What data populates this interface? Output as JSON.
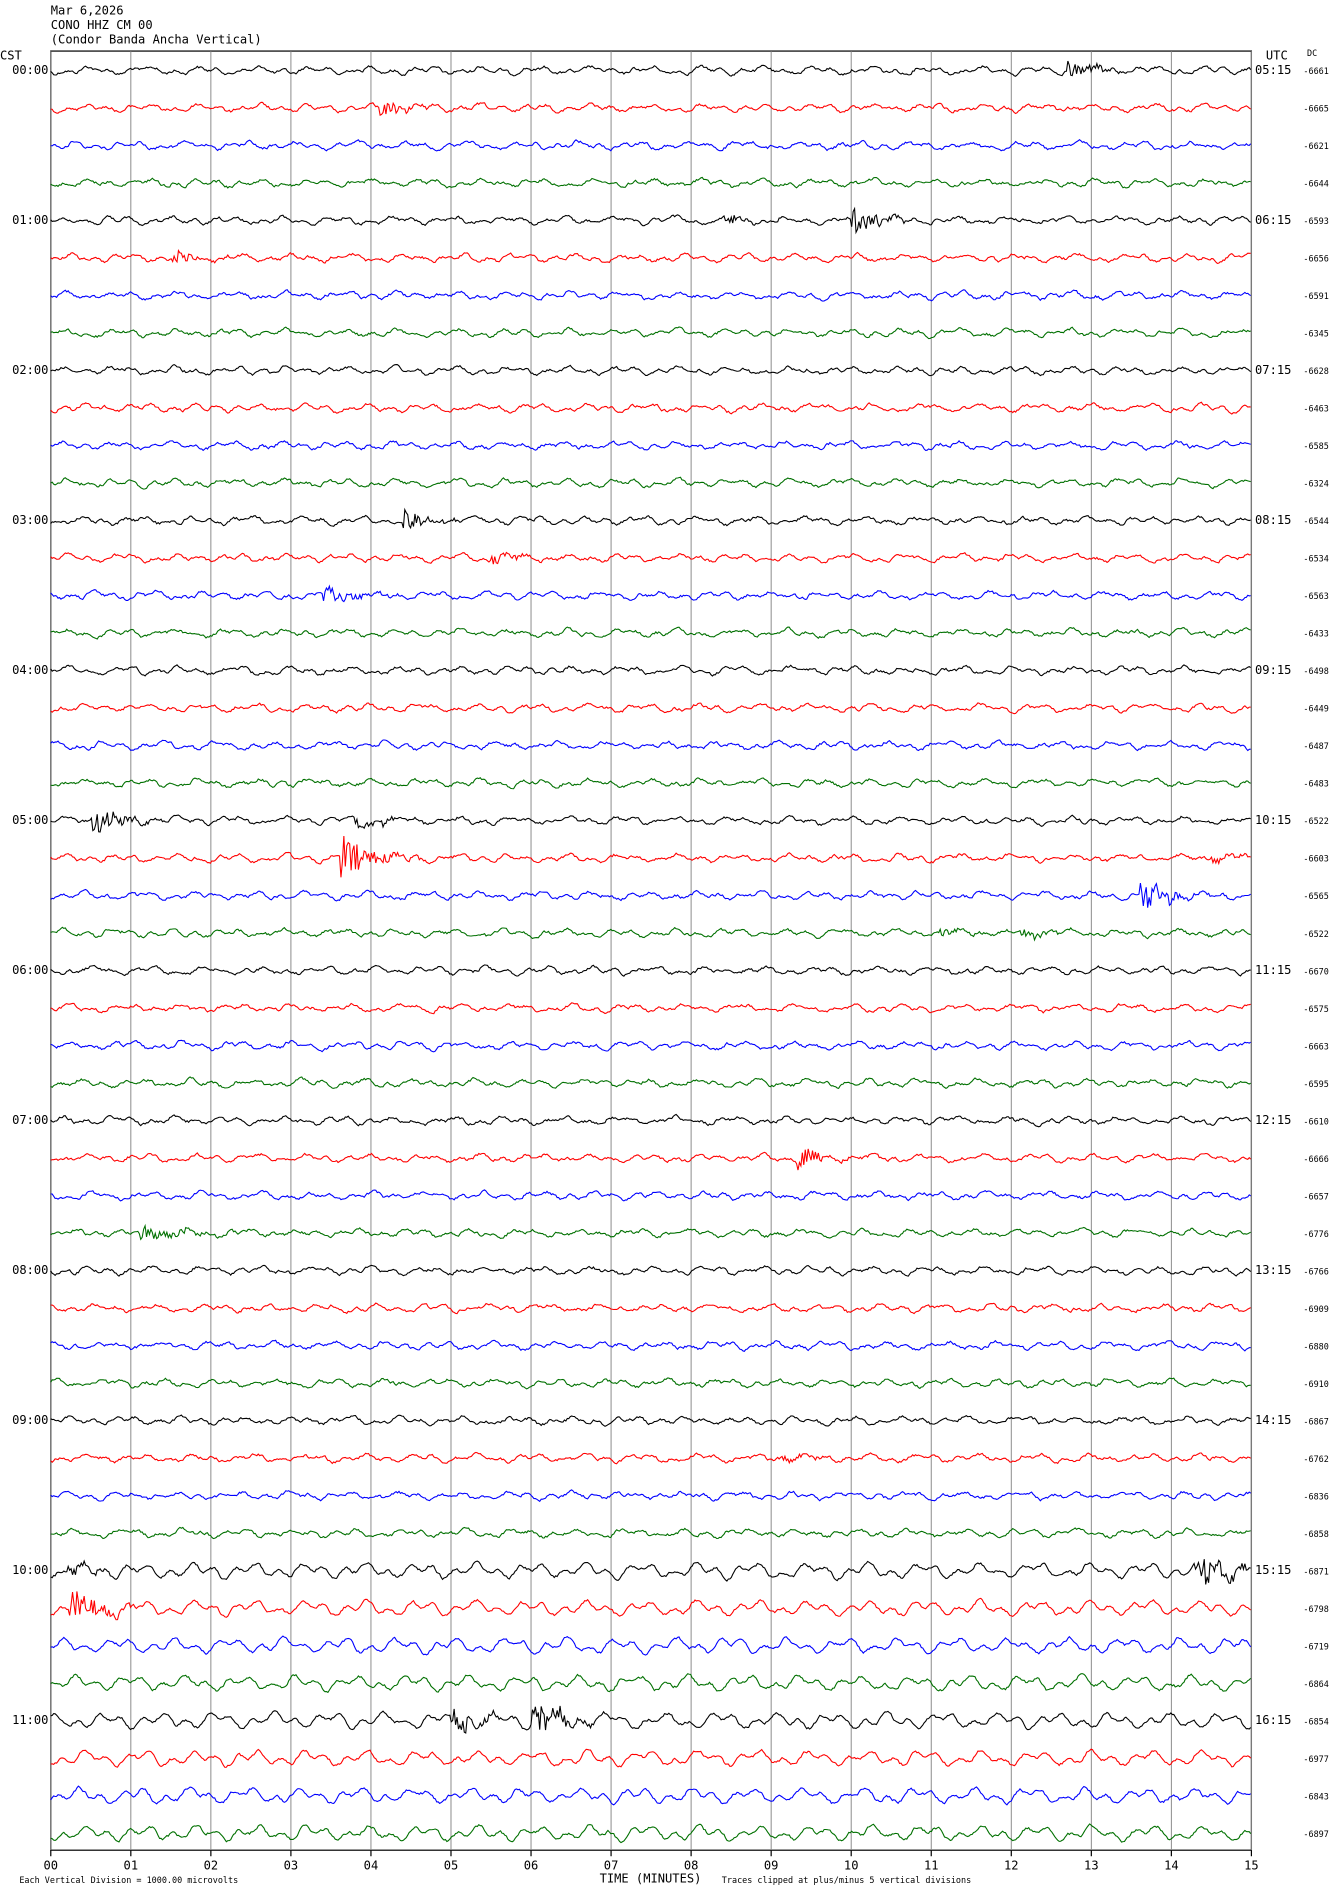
{
  "header": {
    "lines": [
      "Mar 6,2026",
      "CONO HHZ CM 00",
      "(Condor Banda Ancha Vertical)"
    ]
  },
  "left_label": "CST",
  "right_label": "UTC",
  "dc_label": "DC",
  "local_times": [
    "00:00",
    "01:00",
    "02:00",
    "03:00",
    "04:00",
    "05:00",
    "06:00",
    "07:00",
    "08:00",
    "09:00",
    "10:00",
    "11:00"
  ],
  "utc_times": [
    "05:15",
    "06:15",
    "07:15",
    "08:15",
    "09:15",
    "10:15",
    "11:15",
    "12:15",
    "13:15",
    "14:15",
    "15:15",
    "16:15"
  ],
  "dc_offsets": [
    -6661,
    -6665,
    -6621,
    -6644,
    -6593,
    -6656,
    -6591,
    -6345,
    -6628,
    -6463,
    -6585,
    -6324,
    -6544,
    -6534,
    -6563,
    -6433,
    -6498,
    -6449,
    -6487,
    -6483,
    -6522,
    -6603,
    -6565,
    -6522,
    -6670,
    -6575,
    -6663,
    -6595,
    -6610,
    -6666,
    -6657,
    -6776,
    -6766,
    -6909,
    -6880,
    -6910,
    -6867,
    -6762,
    -6836,
    -6858,
    -6871,
    -6798,
    -6719,
    -6864,
    -6854,
    -6977,
    -6843,
    -6897
  ],
  "trace_colors": [
    "#000000",
    "#ff0000",
    "#0000ff",
    "#007000"
  ],
  "x_axis": {
    "label": "TIME (MINUTES)",
    "lim": [
      0,
      15
    ],
    "ticks": [
      {
        "value": 0,
        "label": "00"
      },
      {
        "value": 1,
        "label": "01"
      },
      {
        "value": 2,
        "label": "02"
      },
      {
        "value": 3,
        "label": "03"
      },
      {
        "value": 4,
        "label": "04"
      },
      {
        "value": 5,
        "label": "05"
      },
      {
        "value": 6,
        "label": "06"
      },
      {
        "value": 7,
        "label": "07"
      },
      {
        "value": 8,
        "label": "08"
      },
      {
        "value": 9,
        "label": "09"
      },
      {
        "value": 10,
        "label": "10"
      },
      {
        "value": 11,
        "label": "11"
      },
      {
        "value": 12,
        "label": "12"
      },
      {
        "value": 13,
        "label": "13"
      },
      {
        "value": 14,
        "label": "14"
      },
      {
        "value": 15,
        "label": "15"
      }
    ]
  },
  "footer": {
    "scale_note": "Each Vertical Division = 1000.00 microvolts",
    "clip_note": "Traces clipped at plus/minus 5 vertical divisions"
  }
}
